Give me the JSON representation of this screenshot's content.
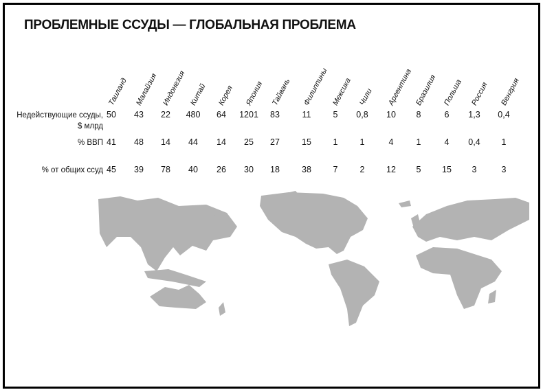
{
  "title": "ПРОБЛЕМНЫЕ ССУДЫ — ГЛОБАЛЬНАЯ ПРОБЛЕМА",
  "countries": [
    "Таиланд",
    "Малайзия",
    "Индонезия",
    "Китай",
    "Корея",
    "Япония",
    "Тайвань",
    "Филиппины",
    "Мексика",
    "Чили",
    "Аргентина",
    "Бразилия",
    "Польша",
    "Россия",
    "Венгрия"
  ],
  "rows": [
    {
      "label": "Недействующие ссуды,",
      "label2": "$ млрд",
      "values": [
        "50",
        "43",
        "22",
        "480",
        "64",
        "1201",
        "83",
        "11",
        "5",
        "0,8",
        "10",
        "8",
        "6",
        "1,3",
        "0,4"
      ]
    },
    {
      "label": "% ВВП",
      "values": [
        "41",
        "48",
        "14",
        "44",
        "14",
        "25",
        "27",
        "15",
        "1",
        "1",
        "4",
        "1",
        "4",
        "0,4",
        "1"
      ]
    },
    {
      "label": "% от общих ссуд",
      "values": [
        "45",
        "39",
        "78",
        "40",
        "26",
        "30",
        "18",
        "38",
        "7",
        "2",
        "12",
        "5",
        "15",
        "3",
        "3"
      ]
    }
  ],
  "map_color": "#b3b3b3"
}
